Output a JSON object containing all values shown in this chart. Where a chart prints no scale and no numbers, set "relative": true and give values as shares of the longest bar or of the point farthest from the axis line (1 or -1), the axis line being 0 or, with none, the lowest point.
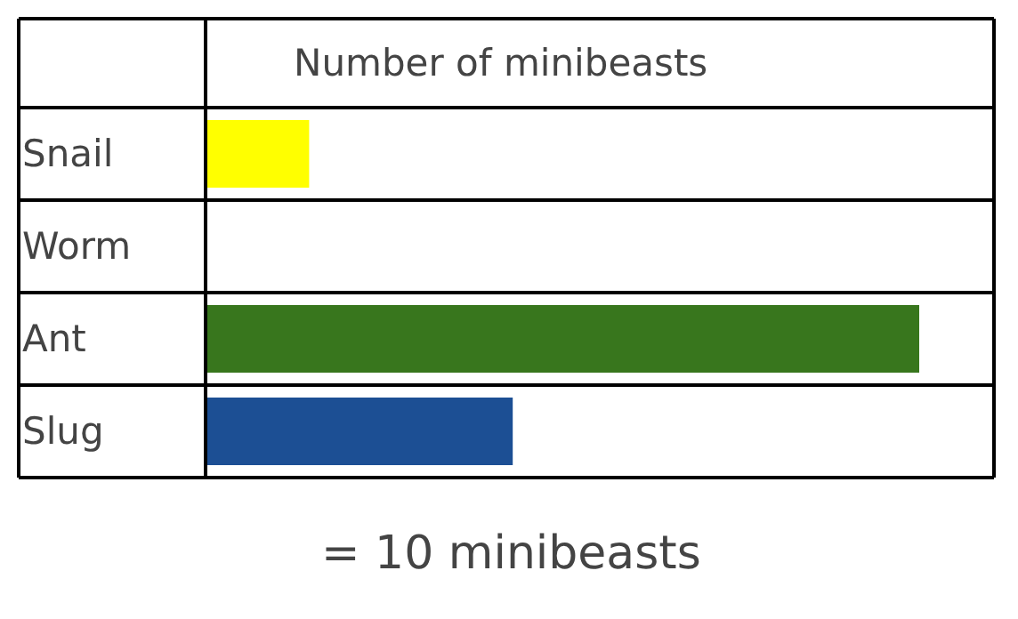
{
  "chart_data": {
    "type": "bar",
    "orientation": "horizontal",
    "relative": true,
    "title": "Number of minibeasts",
    "categories": [
      "Snail",
      "Worm",
      "Ant",
      "Slug"
    ],
    "values": [
      0.143,
      0,
      1,
      0.429
    ],
    "colors": [
      "#ffff00",
      null,
      "#38761d",
      "#1c4f94"
    ],
    "annotations": [
      "= 10 minibeasts"
    ]
  }
}
